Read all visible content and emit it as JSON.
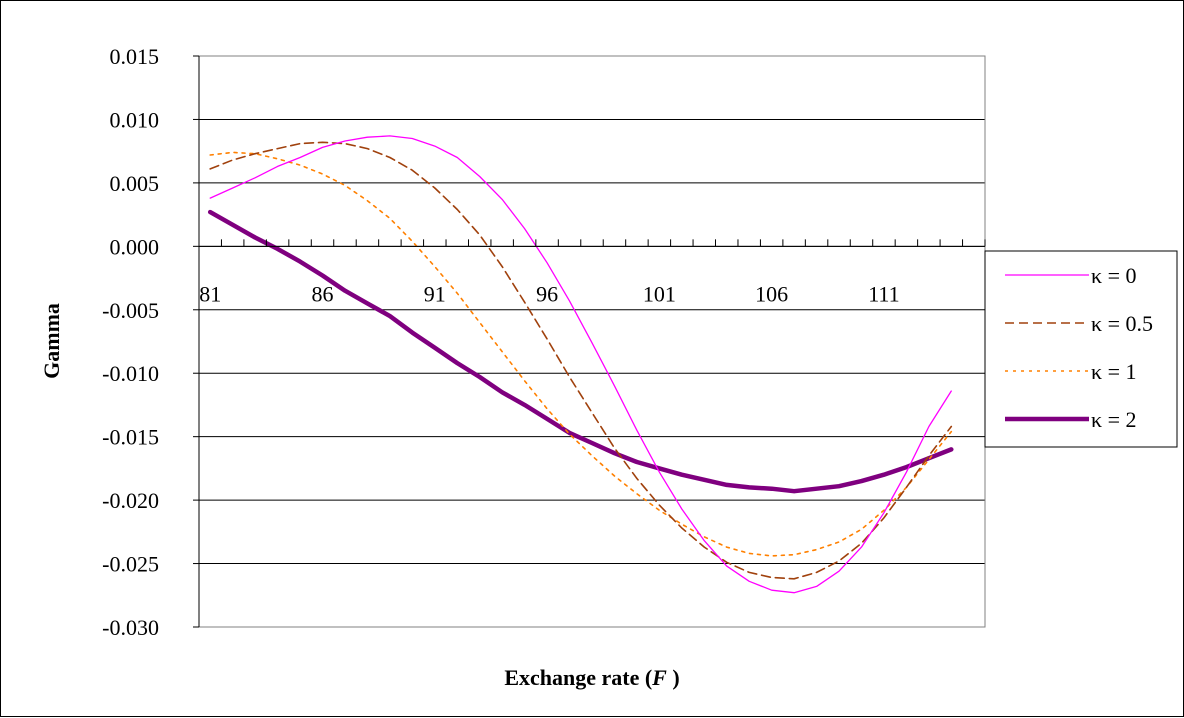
{
  "chart_data": {
    "type": "line",
    "title": "",
    "xlabel_main": "Exchange rate (",
    "xlabel_var": "F",
    "xlabel_end": " )",
    "ylabel": "Gamma",
    "ylim": [
      -0.03,
      0.015
    ],
    "xlim": [
      81,
      115
    ],
    "y_ticks": [
      "0.015",
      "0.010",
      "0.005",
      "0.000",
      "-0.005",
      "-0.010",
      "-0.015",
      "-0.020",
      "-0.025",
      "-0.030"
    ],
    "y_tick_values": [
      0.015,
      0.01,
      0.005,
      0.0,
      -0.005,
      -0.01,
      -0.015,
      -0.02,
      -0.025,
      -0.03
    ],
    "x_ticks": [
      "81",
      "86",
      "91",
      "96",
      "101",
      "106",
      "111"
    ],
    "x_tick_values": [
      81,
      86,
      91,
      96,
      101,
      106,
      111
    ],
    "grid": "horizontal",
    "legend_position": "right",
    "series": [
      {
        "name": "κ = 0",
        "color": "#ff00ff",
        "style": "solid-thin",
        "x": [
          81,
          82,
          83,
          84,
          85,
          86,
          87,
          88,
          89,
          90,
          91,
          92,
          93,
          94,
          95,
          96,
          97,
          98,
          99,
          100,
          101,
          102,
          103,
          104,
          105,
          106,
          107,
          108,
          109,
          110,
          111,
          112,
          113,
          114
        ],
        "y": [
          0.0038,
          0.0046,
          0.0054,
          0.0063,
          0.007,
          0.0078,
          0.0083,
          0.0086,
          0.0087,
          0.0085,
          0.0079,
          0.007,
          0.0055,
          0.0037,
          0.0014,
          -0.0013,
          -0.0043,
          -0.0076,
          -0.011,
          -0.0145,
          -0.0178,
          -0.0207,
          -0.0232,
          -0.0252,
          -0.0264,
          -0.0271,
          -0.0273,
          -0.0268,
          -0.0256,
          -0.0237,
          -0.021,
          -0.0178,
          -0.0142,
          -0.0114
        ]
      },
      {
        "name": "κ = 0.5",
        "color": "#a0410d",
        "style": "dashed",
        "x": [
          81,
          82,
          83,
          84,
          85,
          86,
          87,
          88,
          89,
          90,
          91,
          92,
          93,
          94,
          95,
          96,
          97,
          98,
          99,
          100,
          101,
          102,
          103,
          104,
          105,
          106,
          107,
          108,
          109,
          110,
          111,
          112,
          113,
          114
        ],
        "y": [
          0.0061,
          0.0068,
          0.0073,
          0.0077,
          0.0081,
          0.0082,
          0.0081,
          0.0077,
          0.007,
          0.006,
          0.0046,
          0.0029,
          0.0009,
          -0.0016,
          -0.0044,
          -0.0073,
          -0.0103,
          -0.0131,
          -0.0159,
          -0.0183,
          -0.0204,
          -0.0222,
          -0.0237,
          -0.0249,
          -0.0257,
          -0.0261,
          -0.0262,
          -0.0257,
          -0.0248,
          -0.0234,
          -0.0214,
          -0.019,
          -0.0165,
          -0.0142
        ]
      },
      {
        "name": "κ = 1",
        "color": "#ff8000",
        "style": "dotted",
        "x": [
          81,
          82,
          83,
          84,
          85,
          86,
          87,
          88,
          89,
          90,
          91,
          92,
          93,
          94,
          95,
          96,
          97,
          98,
          99,
          100,
          101,
          102,
          103,
          104,
          105,
          106,
          107,
          108,
          109,
          110,
          111,
          112,
          113,
          114
        ],
        "y": [
          0.0072,
          0.0074,
          0.0073,
          0.0069,
          0.0064,
          0.0057,
          0.0048,
          0.0036,
          0.0022,
          0.0004,
          -0.0016,
          -0.0037,
          -0.006,
          -0.0083,
          -0.0106,
          -0.0128,
          -0.0148,
          -0.0165,
          -0.0181,
          -0.0195,
          -0.0208,
          -0.0219,
          -0.0229,
          -0.0237,
          -0.0242,
          -0.0244,
          -0.0243,
          -0.0239,
          -0.0233,
          -0.0223,
          -0.0208,
          -0.019,
          -0.0168,
          -0.0146
        ]
      },
      {
        "name": "κ = 2",
        "color": "#7f007f",
        "style": "solid-thick",
        "x": [
          81,
          82,
          83,
          84,
          85,
          86,
          87,
          88,
          89,
          90,
          91,
          92,
          93,
          94,
          95,
          96,
          97,
          98,
          99,
          100,
          101,
          102,
          103,
          104,
          105,
          106,
          107,
          108,
          109,
          110,
          111,
          112,
          113,
          114
        ],
        "y": [
          0.0027,
          0.0017,
          0.0007,
          -0.0002,
          -0.0012,
          -0.0023,
          -0.0035,
          -0.0045,
          -0.0055,
          -0.0068,
          -0.008,
          -0.0092,
          -0.0103,
          -0.0115,
          -0.0125,
          -0.0136,
          -0.0147,
          -0.0155,
          -0.0163,
          -0.017,
          -0.0175,
          -0.018,
          -0.0184,
          -0.0188,
          -0.019,
          -0.0191,
          -0.0193,
          -0.0191,
          -0.0189,
          -0.0185,
          -0.018,
          -0.0174,
          -0.0167,
          -0.016
        ]
      }
    ]
  }
}
